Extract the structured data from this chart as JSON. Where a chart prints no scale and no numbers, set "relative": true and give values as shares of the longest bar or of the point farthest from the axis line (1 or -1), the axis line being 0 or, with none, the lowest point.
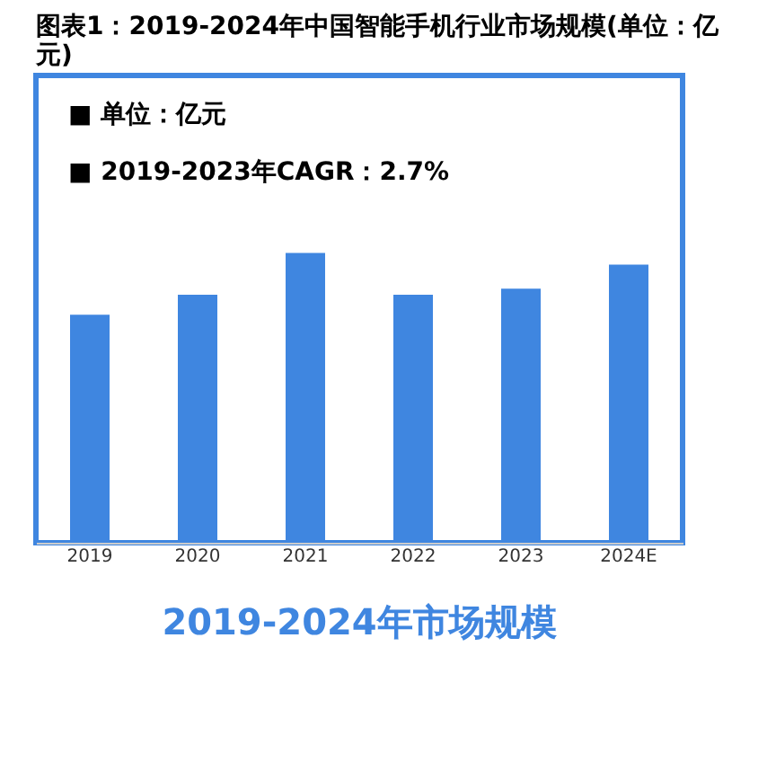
{
  "chart_data": {
    "type": "bar",
    "title": "图表1：2019-2024年中国智能手机行业市场规模(单位：亿元)",
    "categories": [
      "2019",
      "2020",
      "2021",
      "2022",
      "2023",
      "2024E"
    ],
    "values": [
      0.787,
      0.856,
      1,
      0.856,
      0.877,
      0.96
    ],
    "color": "#3f86e0",
    "relative": true,
    "grid": false,
    "annotations": [
      "■  单位：亿元",
      "■  2019-2023年CAGR：2.7%",
      "2019-2024年市场规模"
    ]
  }
}
